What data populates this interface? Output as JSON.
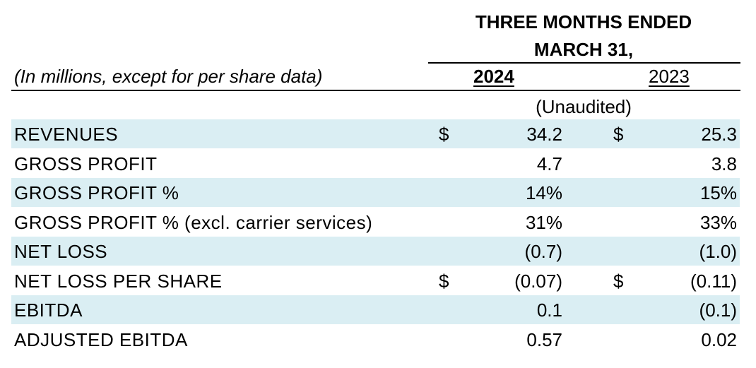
{
  "header": {
    "period_line1": "THREE MONTHS ENDED",
    "period_line2": "MARCH 31,",
    "units_note": "(In millions, except for per share data)",
    "year_current": "2024",
    "year_prior": "2023",
    "audit_status": "(Unaudited)"
  },
  "rows": [
    {
      "label": "REVENUES",
      "dollar_current": "$",
      "current": "34.2",
      "dollar_prior": "$",
      "prior": "25.3",
      "shaded": true
    },
    {
      "label": "GROSS PROFIT",
      "dollar_current": "",
      "current": "4.7",
      "dollar_prior": "",
      "prior": "3.8",
      "shaded": false
    },
    {
      "label": "GROSS PROFIT %",
      "dollar_current": "",
      "current": "14%",
      "dollar_prior": "",
      "prior": "15%",
      "shaded": true
    },
    {
      "label": "GROSS PROFIT % (excl. carrier services)",
      "dollar_current": "",
      "current": "31%",
      "dollar_prior": "",
      "prior": "33%",
      "shaded": false
    },
    {
      "label": "NET LOSS",
      "dollar_current": "",
      "current": "(0.7)",
      "dollar_prior": "",
      "prior": "(1.0)",
      "shaded": true
    },
    {
      "label": "NET LOSS PER SHARE",
      "dollar_current": "$",
      "current": "(0.07)",
      "dollar_prior": "$",
      "prior": "(0.11)",
      "shaded": false
    },
    {
      "label": "EBITDA",
      "dollar_current": "",
      "current": "0.1",
      "dollar_prior": "",
      "prior": "(0.1)",
      "shaded": true
    },
    {
      "label": "ADJUSTED EBITDA",
      "dollar_current": "",
      "current": "0.57",
      "dollar_prior": "",
      "prior": "0.02",
      "shaded": false
    }
  ],
  "colors": {
    "row_shading": "#daeef3",
    "text": "#000000",
    "rules": "#000000"
  }
}
